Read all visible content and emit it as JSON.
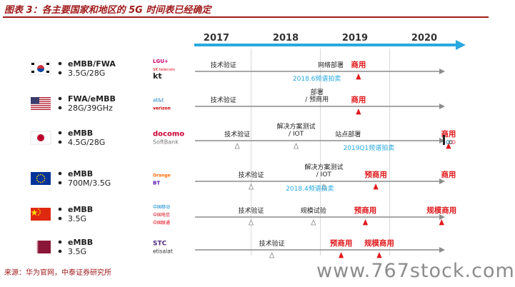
{
  "figure": {
    "title": "图表 3：各主要国家和地区的 5G 时间表已经确定",
    "source": "来源：华为官网，中泰证券研究所",
    "watermark": "www.767stock.com"
  },
  "timeline": {
    "years": [
      "2017",
      "2018",
      "2019",
      "2020"
    ]
  },
  "colors": {
    "title": "#a01c1c",
    "arrow": "#29a9e0",
    "label_blue": "#29a9e0",
    "red": "#e0191c",
    "track": "#8c8c8c"
  },
  "regions": [
    {
      "id": "korea",
      "flag": "korea-flag",
      "bullets": [
        "eMBB/FWA",
        "3.5G/28G"
      ],
      "carriers": [
        "LGU+",
        "SK telecom",
        "kt"
      ],
      "events": [
        {
          "text": "技术验证",
          "date": 2017.1,
          "style": "black"
        },
        {
          "text": "网络部署",
          "date": 2018.65,
          "style": "black"
        },
        {
          "text": "2018.6频谱拍卖",
          "date": 2018.45,
          "style": "blue"
        },
        {
          "text": "商用",
          "date": 2019.05,
          "style": "red",
          "marker": true
        }
      ]
    },
    {
      "id": "usa",
      "flag": "usa-flag",
      "bullets": [
        "FWA/eMBB",
        "28G/39GHz"
      ],
      "carriers": [
        "at&t",
        "verizon"
      ],
      "events": [
        {
          "text": "技术验证",
          "date": 2017.1,
          "style": "black"
        },
        {
          "text": "部署 / 预商用",
          "date": 2018.45,
          "style": "black"
        },
        {
          "text": "商用",
          "date": 2019.05,
          "style": "red",
          "marker": true
        }
      ]
    },
    {
      "id": "japan",
      "flag": "japan-flag",
      "bullets": [
        "eMBB",
        "4.5G/28G"
      ],
      "carriers": [
        "docomo",
        "SoftBank"
      ],
      "events": [
        {
          "text": "技术验证",
          "date": 2017.3,
          "style": "black",
          "marker": true
        },
        {
          "text": "解决方案测试 / IOT",
          "date": 2018.15,
          "style": "black",
          "marker": true
        },
        {
          "text": "站点部署",
          "date": 2018.9,
          "style": "black"
        },
        {
          "text": "2019Q1频谱拍卖",
          "date": 2019.2,
          "style": "blue"
        },
        {
          "text": "商用",
          "date": 2020.35,
          "style": "red",
          "marker": true
        }
      ]
    },
    {
      "id": "europe",
      "flag": "eu-flag",
      "bullets": [
        "eMBB",
        "700M/3.5G"
      ],
      "carriers": [
        "Orange",
        "BT"
      ],
      "events": [
        {
          "text": "技术验证",
          "date": 2017.5,
          "style": "black",
          "marker": true
        },
        {
          "text": "解决方案测试 / IOT",
          "date": 2018.55,
          "style": "black",
          "marker": true
        },
        {
          "text": "2018.4频谱拍卖",
          "date": 2018.35,
          "style": "blue"
        },
        {
          "text": "预商用",
          "date": 2019.3,
          "style": "red",
          "marker": true
        },
        {
          "text": "商用",
          "date": 2020.35,
          "style": "red"
        }
      ]
    },
    {
      "id": "china",
      "flag": "china-flag",
      "bullets": [
        "eMBB",
        "3.5G"
      ],
      "carriers": [
        "中国移动",
        "中国电信",
        "中国联通"
      ],
      "events": [
        {
          "text": "技术验证",
          "date": 2017.5,
          "style": "black",
          "marker": true
        },
        {
          "text": "规模试验",
          "date": 2018.4,
          "style": "black",
          "marker": true
        },
        {
          "text": "预商用",
          "date": 2019.15,
          "style": "red",
          "marker": true
        },
        {
          "text": "规模商用",
          "date": 2020.25,
          "style": "red",
          "marker": true
        }
      ]
    },
    {
      "id": "qatar",
      "flag": "qatar-flag",
      "bullets": [
        "eMBB",
        "3.5G"
      ],
      "carriers": [
        "STC",
        "etisalat"
      ],
      "events": [
        {
          "text": "技术验证",
          "date": 2017.8,
          "style": "black",
          "marker": true
        },
        {
          "text": "预商用",
          "date": 2018.8,
          "style": "red",
          "marker": true
        },
        {
          "text": "规模商用",
          "date": 2019.35,
          "style": "red",
          "marker": true
        }
      ]
    }
  ]
}
